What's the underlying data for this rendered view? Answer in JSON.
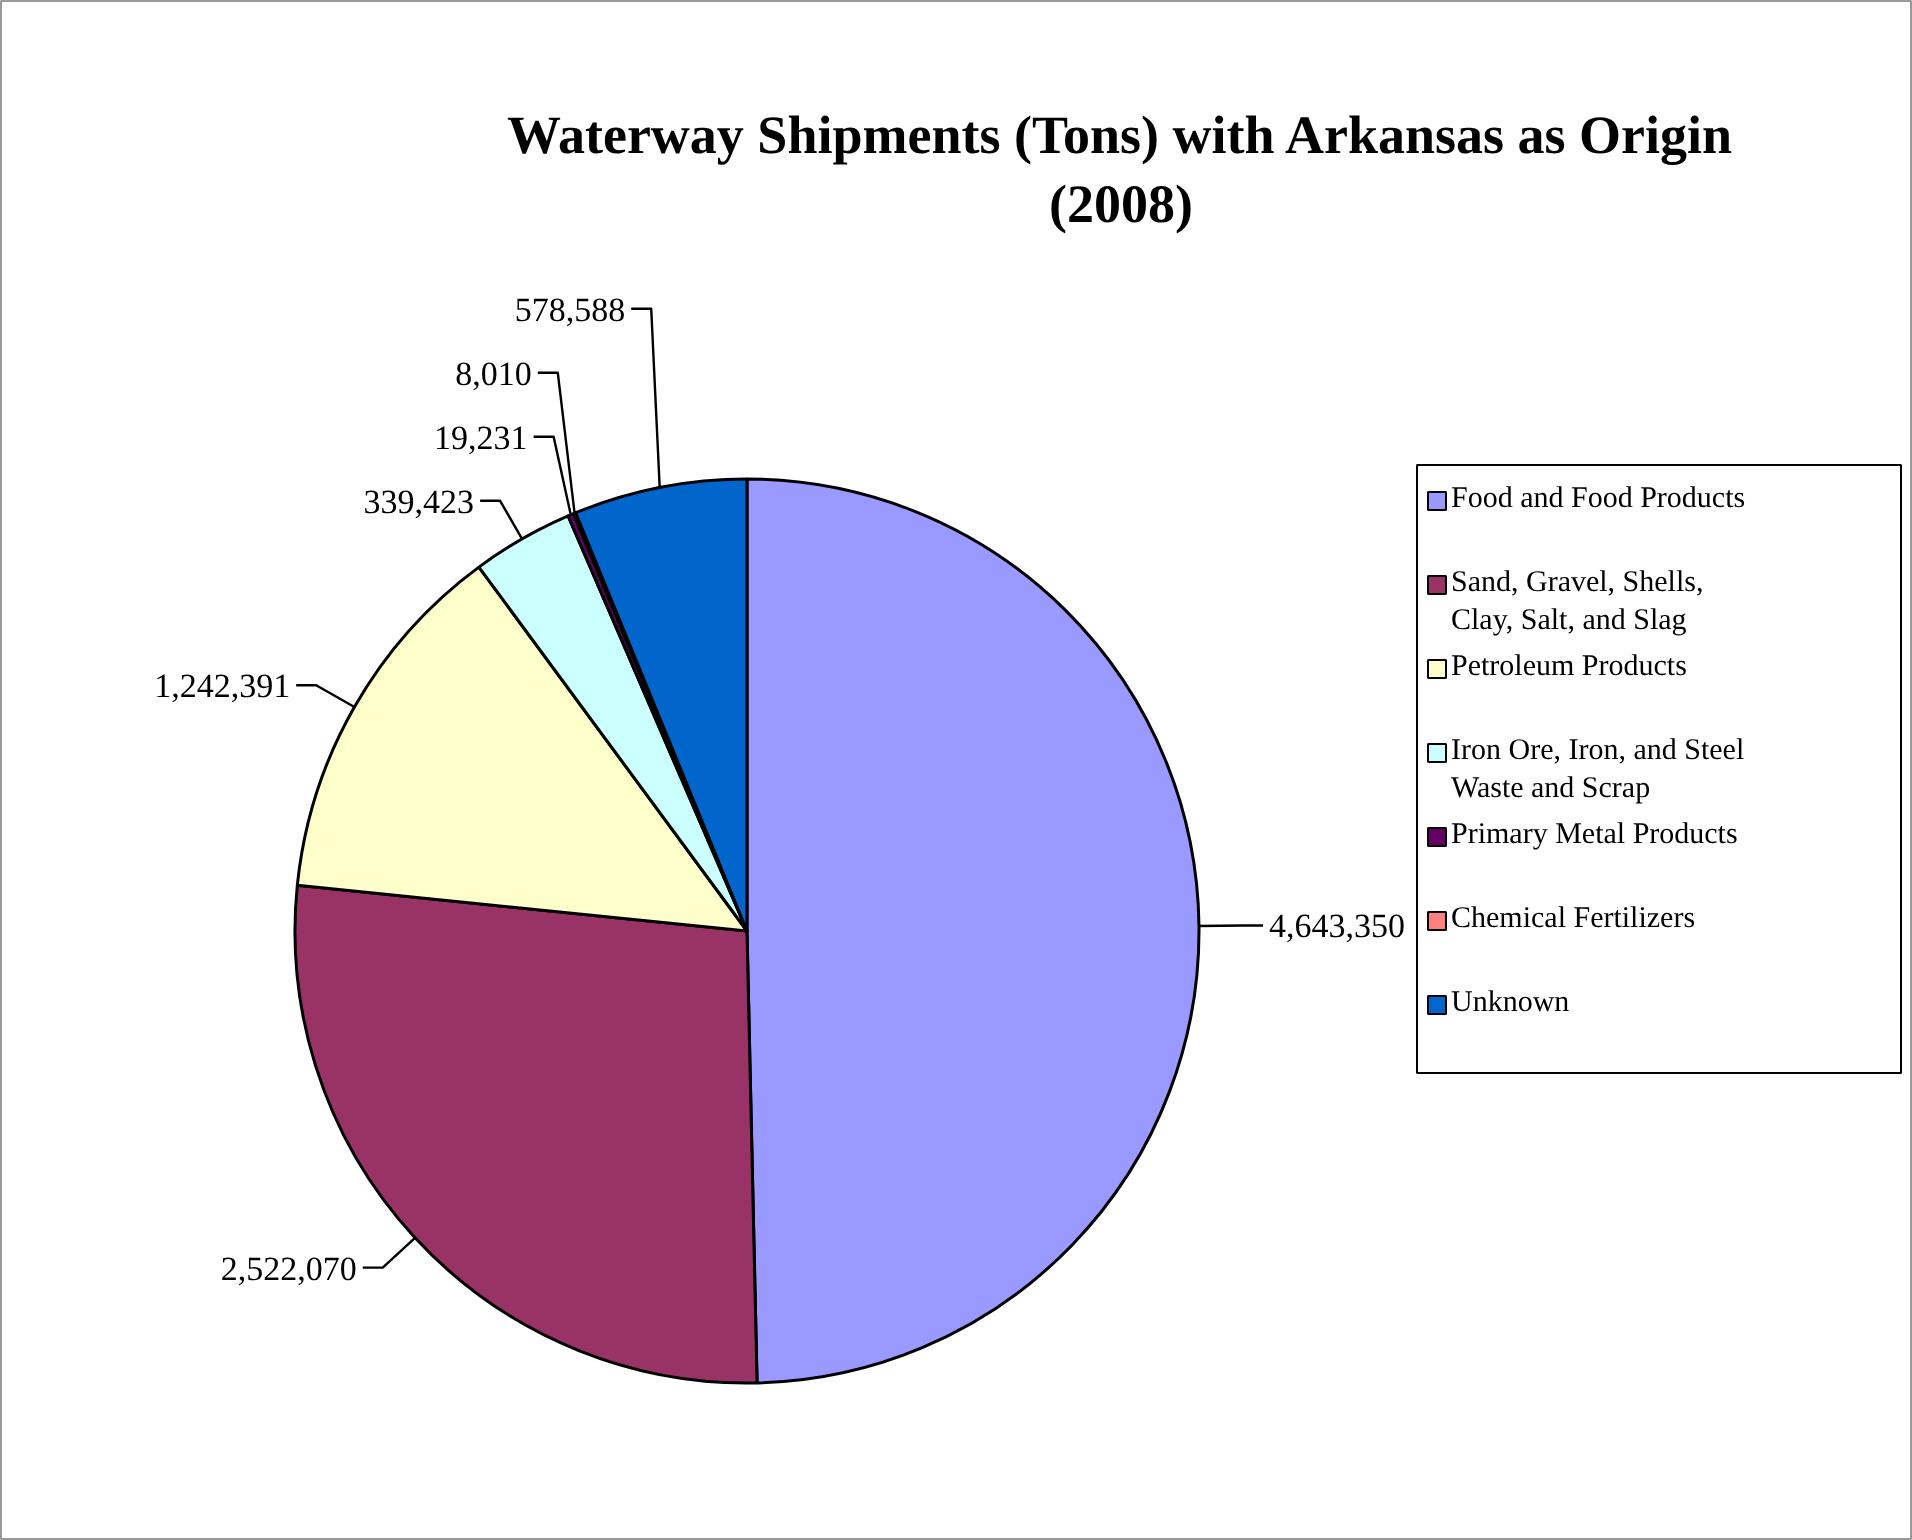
{
  "chart_data": {
    "type": "pie",
    "title": "Waterway Shipments (Tons) with Arkansas as Origin (2008)",
    "categories": [
      "Food and Food Products",
      "Sand, Gravel, Shells, Clay, Salt, and Slag",
      "Petroleum Products",
      "Iron Ore, Iron, and Steel Waste and Scrap",
      "Primary Metal Products",
      "Chemical Fertilizers",
      "Unknown"
    ],
    "values": [
      4643350,
      2522070,
      1242391,
      339423,
      19231,
      8010,
      578588
    ],
    "colors": [
      "#9999ff",
      "#993366",
      "#ffffcc",
      "#ccffff",
      "#660066",
      "#ff8080",
      "#0066cc"
    ],
    "value_labels": [
      "4,643,350",
      "2,522,070",
      "1,242,391",
      "339,423",
      "19,231",
      "8,010",
      "578,588"
    ],
    "legend": "right"
  }
}
